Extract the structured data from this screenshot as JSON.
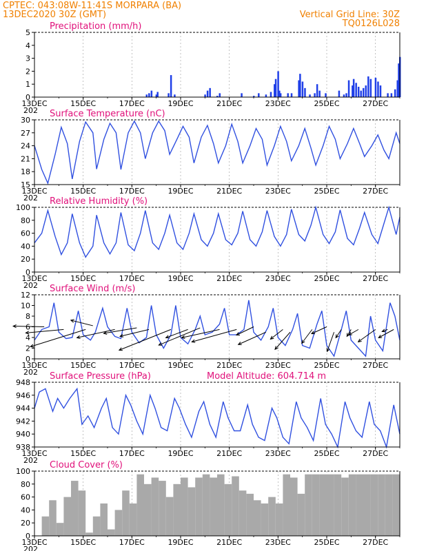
{
  "header": {
    "line1": "CPTEC:   043:08W-11:41S   MORPARA (BA)",
    "line2": "13DEC2020 30Z (GMT)",
    "grid_note": "Vertical Grid Line: 30Z",
    "code": "TQ0126L028"
  },
  "colors": {
    "line": "#3050e0",
    "bar": "#1f3fe8",
    "cloud": "#a9a9a9",
    "header": "#f08000",
    "title": "#e0107a"
  },
  "x_axis": {
    "ticks": [
      "13DEC",
      "15DEC",
      "17DEC",
      "19DEC",
      "21DEC",
      "23DEC",
      "25DEC",
      "27DEC"
    ],
    "tick_days": [
      13,
      15,
      17,
      19,
      21,
      23,
      25,
      27
    ],
    "range_days": [
      13,
      28
    ],
    "cut_label": "202"
  },
  "chart_data": [
    {
      "type": "bar",
      "title": "Precipitation (mm/h)",
      "ylim": [
        0,
        5
      ],
      "yticks": [
        "0",
        "1",
        "2",
        "3",
        "4",
        "5"
      ],
      "x_days": [
        17.6,
        17.7,
        17.8,
        18.0,
        18.05,
        18.5,
        18.6,
        18.75,
        20.0,
        20.1,
        20.2,
        20.5,
        20.6,
        21.5,
        22.0,
        22.2,
        22.5,
        22.7,
        22.85,
        22.9,
        23.0,
        23.05,
        23.1,
        23.4,
        23.55,
        23.85,
        23.9,
        24.0,
        24.1,
        24.3,
        24.5,
        24.6,
        24.7,
        24.95,
        25.5,
        25.7,
        25.8,
        25.9,
        26.05,
        26.1,
        26.2,
        26.3,
        26.4,
        26.5,
        26.6,
        26.7,
        26.8,
        27.0,
        27.1,
        27.2,
        27.5,
        27.65,
        27.8,
        27.9,
        27.95,
        28.0
      ],
      "values": [
        0.2,
        0.3,
        0.5,
        0.2,
        0.4,
        0.3,
        1.7,
        0.2,
        0.2,
        0.5,
        0.7,
        0.1,
        0.3,
        0.3,
        0.1,
        0.3,
        0.2,
        0.4,
        1.0,
        1.4,
        2.0,
        0.5,
        0.3,
        0.3,
        0.3,
        1.3,
        1.8,
        1.2,
        0.7,
        0.2,
        0.3,
        1.0,
        0.5,
        0.3,
        0.5,
        0.2,
        0.3,
        1.3,
        0.9,
        1.4,
        1.1,
        0.8,
        0.5,
        0.7,
        0.9,
        1.6,
        1.4,
        1.5,
        1.2,
        0.9,
        0.3,
        0.3,
        0.6,
        1.3,
        2.6,
        3.1
      ]
    },
    {
      "type": "line",
      "title": "Surface Temperature (nC)",
      "ylim": [
        15,
        30
      ],
      "yticks": [
        "15",
        "18",
        "21",
        "24",
        "27",
        "30"
      ],
      "x_days": [
        13.0,
        13.3,
        13.55,
        13.85,
        14.1,
        14.35,
        14.55,
        14.85,
        15.1,
        15.4,
        15.55,
        15.85,
        16.1,
        16.35,
        16.55,
        16.85,
        17.1,
        17.35,
        17.55,
        17.85,
        18.1,
        18.35,
        18.55,
        18.85,
        19.1,
        19.35,
        19.55,
        19.85,
        20.1,
        20.35,
        20.55,
        20.85,
        21.1,
        21.35,
        21.55,
        21.85,
        22.1,
        22.35,
        22.55,
        22.85,
        23.1,
        23.35,
        23.55,
        23.85,
        24.1,
        24.35,
        24.55,
        24.85,
        25.1,
        25.35,
        25.55,
        25.85,
        26.1,
        26.35,
        26.55,
        26.85,
        27.1,
        27.35,
        27.55,
        27.85,
        28.0
      ],
      "values": [
        24.0,
        18.5,
        15.3,
        22.0,
        28.3,
        24.5,
        16.3,
        25.0,
        29.5,
        27.0,
        18.6,
        25.5,
        29.2,
        27.0,
        18.5,
        27.0,
        29.7,
        27.0,
        21.0,
        27.0,
        29.7,
        27.5,
        22.0,
        25.5,
        28.5,
        26.0,
        20.0,
        26.0,
        28.7,
        24.5,
        20.0,
        24.0,
        29.0,
        25.0,
        20.0,
        24.0,
        28.0,
        25.5,
        19.5,
        24.0,
        28.5,
        25.0,
        20.5,
        24.0,
        28.0,
        23.5,
        19.5,
        24.0,
        28.5,
        25.5,
        21.0,
        24.5,
        28.0,
        24.5,
        21.5,
        24.0,
        26.5,
        23.0,
        21.0,
        27.0,
        24.5
      ]
    },
    {
      "type": "line",
      "title": "Relative Humidity (%)",
      "ylim": [
        0,
        100
      ],
      "yticks": [
        "0",
        "20",
        "40",
        "60",
        "80",
        "100"
      ],
      "x_days": [
        13.0,
        13.3,
        13.55,
        13.85,
        14.1,
        14.35,
        14.55,
        14.85,
        15.1,
        15.4,
        15.55,
        15.85,
        16.1,
        16.35,
        16.55,
        16.85,
        17.1,
        17.35,
        17.55,
        17.85,
        18.1,
        18.35,
        18.55,
        18.85,
        19.1,
        19.35,
        19.55,
        19.85,
        20.1,
        20.35,
        20.55,
        20.85,
        21.1,
        21.35,
        21.55,
        21.85,
        22.1,
        22.35,
        22.55,
        22.85,
        23.1,
        23.35,
        23.55,
        23.85,
        24.1,
        24.35,
        24.55,
        24.85,
        25.1,
        25.35,
        25.55,
        25.85,
        26.1,
        26.35,
        26.55,
        26.85,
        27.1,
        27.35,
        27.55,
        27.85,
        28.0
      ],
      "values": [
        45,
        60,
        95,
        55,
        27,
        45,
        90,
        45,
        23,
        40,
        88,
        45,
        28,
        45,
        92,
        42,
        33,
        60,
        95,
        45,
        35,
        60,
        88,
        45,
        35,
        60,
        90,
        50,
        40,
        60,
        90,
        50,
        42,
        60,
        94,
        50,
        40,
        62,
        95,
        55,
        40,
        58,
        97,
        58,
        48,
        72,
        100,
        58,
        44,
        62,
        96,
        52,
        42,
        68,
        92,
        58,
        44,
        75,
        100,
        58,
        85
      ]
    },
    {
      "type": "line",
      "title": "Surface Wind (m/s)",
      "ylim": [
        0,
        12
      ],
      "yticks": [
        "0",
        "2",
        "4",
        "6",
        "8",
        "10",
        "12"
      ],
      "x_days": [
        13.0,
        13.3,
        13.6,
        13.8,
        14.0,
        14.3,
        14.55,
        14.8,
        15.0,
        15.3,
        15.5,
        15.8,
        16.0,
        16.3,
        16.55,
        16.8,
        17.0,
        17.3,
        17.6,
        17.8,
        18.0,
        18.3,
        18.6,
        18.8,
        19.0,
        19.3,
        19.6,
        19.8,
        20.0,
        20.3,
        20.6,
        20.8,
        21.0,
        21.3,
        21.6,
        21.8,
        22.0,
        22.3,
        22.6,
        22.8,
        23.0,
        23.3,
        23.6,
        23.8,
        24.0,
        24.3,
        24.6,
        24.8,
        25.0,
        25.3,
        25.6,
        25.8,
        26.0,
        26.3,
        26.6,
        26.8,
        27.0,
        27.3,
        27.6,
        27.8,
        28.0
      ],
      "values": [
        3.5,
        5.5,
        6.0,
        10.5,
        5.0,
        3.8,
        4.0,
        9.0,
        4.5,
        3.5,
        5.0,
        9.5,
        6.0,
        4.2,
        3.8,
        9.5,
        5.0,
        3.0,
        4.0,
        10.0,
        4.5,
        2.0,
        4.5,
        10.0,
        4.0,
        2.8,
        5.5,
        8.0,
        4.5,
        5.0,
        6.5,
        9.5,
        4.5,
        4.5,
        5.5,
        11.0,
        5.0,
        3.5,
        6.0,
        9.5,
        4.0,
        2.5,
        5.5,
        8.5,
        2.5,
        2.0,
        6.5,
        9.0,
        2.5,
        0.5,
        5.5,
        9.0,
        3.5,
        2.0,
        0.5,
        8.0,
        3.5,
        1.5,
        10.5,
        8.0,
        3.5
      ],
      "arrows": [
        {
          "day": 13.4,
          "speed": 6.0,
          "dx": -45,
          "dy": -1
        },
        {
          "day": 14.2,
          "speed": 5.5,
          "dx": -55,
          "dy": 5
        },
        {
          "day": 15.1,
          "speed": 5.5,
          "dx": -80,
          "dy": 25
        },
        {
          "day": 15.4,
          "speed": 6.2,
          "dx": -32,
          "dy": -8
        },
        {
          "day": 16.3,
          "speed": 5.5,
          "dx": -55,
          "dy": 12
        },
        {
          "day": 17.2,
          "speed": 5.8,
          "dx": -48,
          "dy": 8
        },
        {
          "day": 17.7,
          "speed": 5.5,
          "dx": -42,
          "dy": 10
        },
        {
          "day": 18.6,
          "speed": 5.5,
          "dx": -75,
          "dy": 30
        },
        {
          "day": 19.3,
          "speed": 5.5,
          "dx": -32,
          "dy": 12
        },
        {
          "day": 19.8,
          "speed": 5.8,
          "dx": -60,
          "dy": 25
        },
        {
          "day": 20.6,
          "speed": 5.5,
          "dx": -55,
          "dy": 12
        },
        {
          "day": 21.3,
          "speed": 5.5,
          "dx": -65,
          "dy": 18
        },
        {
          "day": 22.0,
          "speed": 6.0,
          "dx": -25,
          "dy": 12
        },
        {
          "day": 22.5,
          "speed": 5.0,
          "dx": -40,
          "dy": 18
        },
        {
          "day": 23.2,
          "speed": 5.5,
          "dx": -18,
          "dy": 14
        },
        {
          "day": 23.5,
          "speed": 5.0,
          "dx": -22,
          "dy": 25
        },
        {
          "day": 24.4,
          "speed": 5.5,
          "dx": -15,
          "dy": 20
        },
        {
          "day": 25.0,
          "speed": 6.0,
          "dx": -22,
          "dy": 10
        },
        {
          "day": 25.3,
          "speed": 5.0,
          "dx": -10,
          "dy": 28
        },
        {
          "day": 25.6,
          "speed": 5.5,
          "dx": -8,
          "dy": 12
        },
        {
          "day": 26.0,
          "speed": 5.5,
          "dx": -6,
          "dy": 10
        },
        {
          "day": 26.3,
          "speed": 5.5,
          "dx": -14,
          "dy": 8
        },
        {
          "day": 27.0,
          "speed": 5.5,
          "dx": -25,
          "dy": 18
        },
        {
          "day": 27.5,
          "speed": 5.5,
          "dx": -8,
          "dy": 3
        },
        {
          "day": 27.75,
          "speed": 5.5,
          "dx": -22,
          "dy": 12
        }
      ]
    },
    {
      "type": "line",
      "title": "Surface Pressure (hPa)",
      "subtitle": "Model Altitude: 604.714 m",
      "ylim": [
        938,
        948
      ],
      "yticks": [
        "938",
        "940",
        "942",
        "944",
        "946",
        "948"
      ],
      "x_days": [
        13.0,
        13.2,
        13.45,
        13.75,
        13.95,
        14.2,
        14.45,
        14.75,
        14.95,
        15.2,
        15.45,
        15.75,
        15.95,
        16.2,
        16.45,
        16.75,
        16.95,
        17.2,
        17.45,
        17.75,
        17.95,
        18.2,
        18.45,
        18.75,
        18.95,
        19.2,
        19.45,
        19.75,
        19.95,
        20.2,
        20.45,
        20.75,
        20.95,
        21.2,
        21.45,
        21.75,
        21.95,
        22.2,
        22.45,
        22.75,
        22.95,
        23.2,
        23.45,
        23.75,
        23.95,
        24.2,
        24.45,
        24.75,
        24.95,
        25.2,
        25.45,
        25.75,
        25.95,
        26.2,
        26.45,
        26.75,
        26.95,
        27.2,
        27.45,
        27.75,
        28.0
      ],
      "values": [
        944.0,
        946.5,
        947.0,
        943.5,
        945.5,
        944.0,
        945.5,
        947.0,
        941.5,
        942.8,
        941.0,
        944.0,
        945.5,
        941.0,
        940.0,
        946.0,
        944.5,
        942.0,
        940.0,
        946.0,
        944.0,
        941.0,
        940.5,
        945.5,
        944.0,
        941.5,
        939.5,
        943.5,
        945.0,
        941.5,
        939.5,
        945.0,
        942.5,
        940.5,
        940.5,
        944.5,
        941.5,
        939.5,
        939.0,
        944.0,
        942.5,
        939.5,
        938.5,
        945.0,
        942.5,
        941.0,
        939.0,
        945.5,
        941.5,
        940.0,
        938.0,
        945.0,
        942.5,
        940.5,
        939.5,
        945.0,
        941.5,
        940.5,
        938.0,
        944.5,
        940.0
      ]
    },
    {
      "type": "bar",
      "title": "Cloud Cover (%)",
      "ylim": [
        0,
        100
      ],
      "yticks": [
        "0",
        "20",
        "40",
        "60",
        "80",
        "100"
      ],
      "x_days": [
        13.0,
        13.3,
        13.6,
        13.9,
        14.2,
        14.5,
        14.8,
        15.1,
        15.4,
        15.7,
        16.0,
        16.3,
        16.6,
        16.9,
        17.2,
        17.5,
        17.8,
        18.1,
        18.4,
        18.7,
        19.0,
        19.3,
        19.6,
        19.9,
        20.2,
        20.5,
        20.8,
        21.1,
        21.4,
        21.7,
        22.0,
        22.3,
        22.6,
        22.9,
        23.2,
        23.5,
        23.8,
        24.1,
        24.4,
        24.7,
        25.0,
        25.3,
        25.6,
        25.9,
        26.2,
        26.5,
        26.8,
        27.1,
        27.4,
        27.7
      ],
      "values": [
        0,
        30,
        55,
        20,
        60,
        85,
        70,
        5,
        30,
        50,
        10,
        40,
        70,
        50,
        95,
        80,
        90,
        85,
        60,
        80,
        90,
        75,
        90,
        95,
        90,
        95,
        80,
        92,
        70,
        65,
        55,
        50,
        60,
        50,
        95,
        90,
        65,
        95,
        95,
        95,
        95,
        95,
        90,
        95,
        95,
        95,
        95,
        95,
        95,
        95
      ]
    }
  ]
}
